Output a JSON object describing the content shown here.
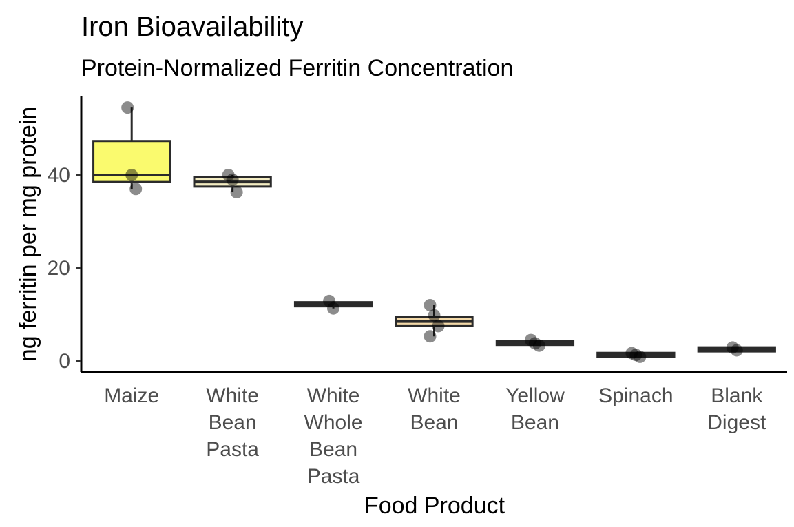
{
  "chart_data": {
    "type": "boxplot",
    "title": "Iron Bioavailability",
    "subtitle": "Protein-Normalized Ferritin Concentration",
    "xlabel": "Food Product",
    "ylabel": "ng ferritin per mg protein",
    "ylim": [
      -2,
      58
    ],
    "yticks": [
      0,
      20,
      40
    ],
    "grid": false,
    "legend": "none",
    "categories": [
      {
        "label": [
          "Maize"
        ],
        "color": "#fafa6e",
        "box": {
          "min": 37,
          "q1": 38.5,
          "median": 40,
          "q3": 47.3,
          "max": 54.5
        },
        "points": [
          54.5,
          40,
          37
        ]
      },
      {
        "label": [
          "White",
          "Bean",
          "Pasta"
        ],
        "color": "#f3ecc2",
        "box": {
          "min": 36.3,
          "q1": 37.5,
          "median": 38.5,
          "q3": 39.5,
          "max": 40
        },
        "points": [
          40,
          39,
          36.3
        ]
      },
      {
        "label": [
          "White",
          "Whole",
          "Bean",
          "Pasta"
        ],
        "color": "#f3ecc2",
        "box": {
          "min": 11.3,
          "q1": 11.8,
          "median": 12.2,
          "q3": 12.6,
          "max": 12.9
        },
        "points": [
          12.9,
          11.3
        ]
      },
      {
        "label": [
          "White",
          "Bean"
        ],
        "color": "#f3d9a8",
        "box": {
          "min": 5.3,
          "q1": 7.5,
          "median": 8.5,
          "q3": 9.5,
          "max": 12
        },
        "points": [
          12,
          9.8,
          7.5,
          5.3
        ]
      },
      {
        "label": [
          "Yellow",
          "Bean"
        ],
        "color": "#f3ecc2",
        "box": {
          "min": 3.3,
          "q1": 3.5,
          "median": 3.9,
          "q3": 4.3,
          "max": 4.5
        },
        "points": [
          4.5,
          3.8,
          3.3
        ]
      },
      {
        "label": [
          "Spinach"
        ],
        "color": "#f3ecc2",
        "box": {
          "min": 0.7,
          "q1": 1.0,
          "median": 1.3,
          "q3": 1.6,
          "max": 1.7
        },
        "points": [
          1.7,
          1.3,
          0.9
        ]
      },
      {
        "label": [
          "Blank",
          "Digest"
        ],
        "color": "#f3ecc2",
        "box": {
          "min": 2.1,
          "q1": 2.2,
          "median": 2.5,
          "q3": 2.8,
          "max": 2.9
        },
        "points": [
          2.9,
          2.3
        ]
      }
    ],
    "colors": {
      "box_stroke": "#2b2b2b",
      "point": "#000000",
      "axis": "#000000"
    }
  }
}
